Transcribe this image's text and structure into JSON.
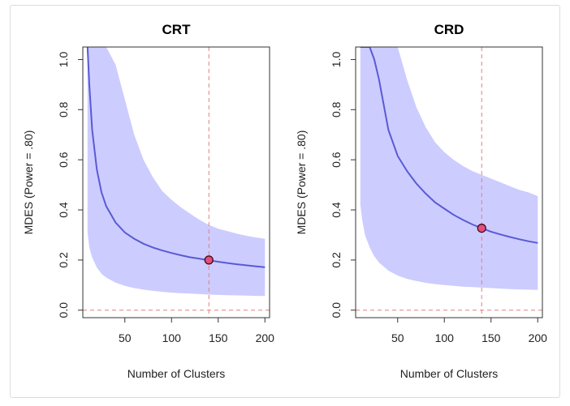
{
  "chart_data": [
    {
      "type": "line",
      "title": "CRT",
      "xlabel": "Number of Clusters",
      "ylabel": "MDES (Power = .80)",
      "xlim": [
        5,
        205
      ],
      "ylim": [
        -0.03,
        1.05
      ],
      "x_ticks": [
        50,
        100,
        150,
        200
      ],
      "y_ticks": [
        0.0,
        0.2,
        0.4,
        0.6,
        0.8,
        1.0
      ],
      "y_tick_labels": [
        "0.0",
        "0.2",
        "0.4",
        "0.6",
        "0.8",
        "1.0"
      ],
      "x": [
        10,
        12,
        15,
        20,
        25,
        30,
        40,
        50,
        60,
        70,
        80,
        90,
        100,
        110,
        120,
        130,
        140,
        150,
        160,
        170,
        180,
        190,
        200
      ],
      "series": [
        {
          "name": "estimate",
          "values": [
            1.05,
            0.9,
            0.72,
            0.56,
            0.47,
            0.415,
            0.35,
            0.31,
            0.285,
            0.265,
            0.25,
            0.238,
            0.228,
            0.219,
            0.211,
            0.205,
            0.199,
            0.193,
            0.188,
            0.183,
            0.179,
            0.175,
            0.171
          ]
        },
        {
          "name": "upper",
          "values": [
            1.05,
            1.05,
            1.05,
            1.05,
            1.05,
            1.05,
            0.98,
            0.84,
            0.7,
            0.6,
            0.53,
            0.475,
            0.44,
            0.41,
            0.385,
            0.36,
            0.34,
            0.325,
            0.315,
            0.305,
            0.297,
            0.29,
            0.285
          ]
        },
        {
          "name": "lower",
          "values": [
            0.31,
            0.25,
            0.21,
            0.17,
            0.145,
            0.13,
            0.11,
            0.097,
            0.088,
            0.082,
            0.077,
            0.073,
            0.07,
            0.068,
            0.066,
            0.064,
            0.062,
            0.061,
            0.06,
            0.059,
            0.058,
            0.057,
            0.057
          ]
        }
      ],
      "highlight_point": {
        "x": 140,
        "y": 0.2
      },
      "vline_x": 140,
      "hline_y": 0
    },
    {
      "type": "line",
      "title": "CRD",
      "xlabel": "Number of Clusters",
      "ylabel": "MDES (Power = .80)",
      "xlim": [
        5,
        205
      ],
      "ylim": [
        -0.03,
        1.05
      ],
      "x_ticks": [
        50,
        100,
        150,
        200
      ],
      "y_ticks": [
        0.0,
        0.2,
        0.4,
        0.6,
        0.8,
        1.0
      ],
      "y_tick_labels": [
        "0.0",
        "0.2",
        "0.4",
        "0.6",
        "0.8",
        "1.0"
      ],
      "x": [
        10,
        12,
        15,
        20,
        25,
        30,
        40,
        50,
        60,
        70,
        80,
        90,
        100,
        110,
        120,
        130,
        140,
        150,
        160,
        170,
        180,
        190,
        200
      ],
      "series": [
        {
          "name": "estimate",
          "values": [
            1.05,
            1.05,
            1.05,
            1.05,
            1.0,
            0.92,
            0.72,
            0.615,
            0.555,
            0.505,
            0.465,
            0.43,
            0.405,
            0.38,
            0.36,
            0.342,
            0.327,
            0.313,
            0.302,
            0.292,
            0.283,
            0.275,
            0.268
          ]
        },
        {
          "name": "upper",
          "values": [
            1.05,
            1.05,
            1.05,
            1.05,
            1.05,
            1.05,
            1.05,
            1.05,
            0.92,
            0.81,
            0.73,
            0.67,
            0.63,
            0.6,
            0.575,
            0.555,
            0.54,
            0.525,
            0.51,
            0.495,
            0.48,
            0.47,
            0.455
          ]
        },
        {
          "name": "lower",
          "values": [
            0.42,
            0.36,
            0.3,
            0.25,
            0.215,
            0.19,
            0.158,
            0.138,
            0.125,
            0.116,
            0.109,
            0.104,
            0.1,
            0.097,
            0.094,
            0.092,
            0.09,
            0.088,
            0.086,
            0.084,
            0.083,
            0.082,
            0.081
          ]
        }
      ],
      "highlight_point": {
        "x": 140,
        "y": 0.327
      },
      "vline_x": 140,
      "hline_y": 0
    }
  ],
  "colors": {
    "band": "#c9c9ff",
    "line": "#5a5ad6",
    "ref_line": "#e08080",
    "point_fill": "#e0507a",
    "point_stroke": "#400010",
    "axis": "#333333"
  }
}
